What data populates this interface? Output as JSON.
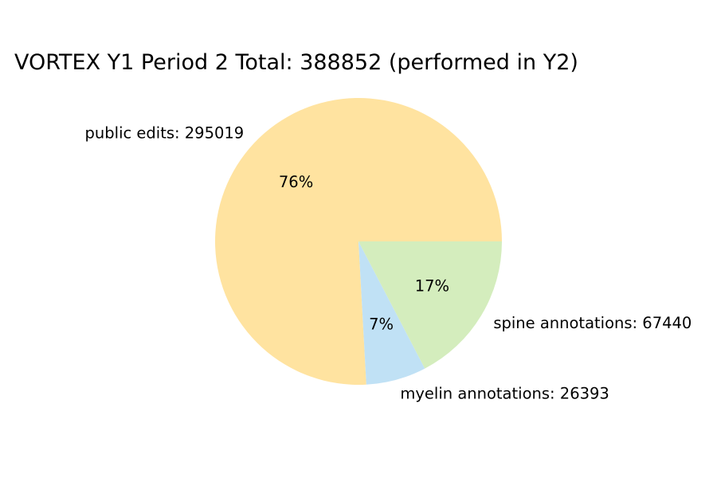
{
  "chart_data": {
    "type": "pie",
    "title": "VORTEX Y1 Period 2 Total: 388852 (performed in Y2)",
    "start_angle_deg": 0,
    "direction": "counterclockwise",
    "slices": [
      {
        "label": "public edits: 295019",
        "value": 295019,
        "percent_label": "76%",
        "color": "#ffe3a0"
      },
      {
        "label": "myelin annotations: 26393",
        "value": 26393,
        "percent_label": "7%",
        "color": "#c0e1f5"
      },
      {
        "label": "spine annotations: 67440",
        "value": 67440,
        "percent_label": "17%",
        "color": "#d4edbd"
      }
    ]
  }
}
